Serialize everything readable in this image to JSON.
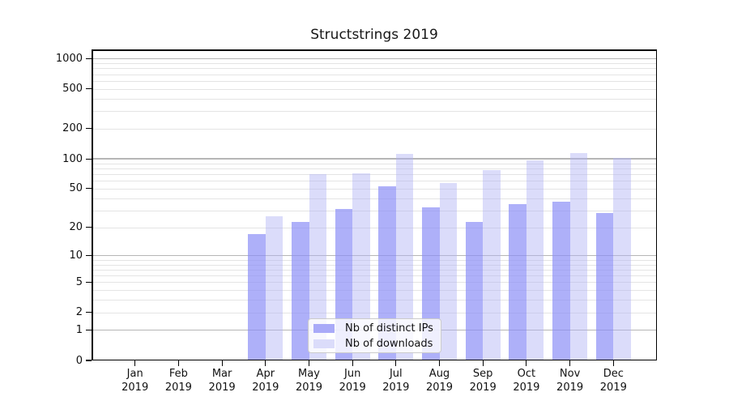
{
  "title": "Structstrings 2019",
  "chart_data": {
    "type": "bar",
    "title": "Structstrings 2019",
    "categories": [
      "Jan",
      "Feb",
      "Mar",
      "Apr",
      "May",
      "Jun",
      "Jul",
      "Aug",
      "Sep",
      "Oct",
      "Nov",
      "Dec"
    ],
    "year_label": "2019",
    "series": [
      {
        "name": "Nb of distinct IPs",
        "values": [
          0,
          0,
          0,
          17,
          23,
          31,
          53,
          32,
          23,
          35,
          37,
          28
        ],
        "fill": "rgba(140,142,247,0.7)",
        "legend_color": "#a9aaf8"
      },
      {
        "name": "Nb of downloads",
        "values": [
          0,
          0,
          0,
          26,
          70,
          72,
          112,
          57,
          77,
          97,
          115,
          102
        ],
        "fill": "rgba(175,177,244,0.45)",
        "legend_color": "#dbdcfa"
      }
    ],
    "yscale": "log1p",
    "yticks": [
      0,
      1,
      2,
      5,
      10,
      20,
      50,
      100,
      200,
      500,
      1000
    ],
    "major_grid_values": [
      1,
      10,
      100,
      1000
    ],
    "ylim": [
      0,
      1240
    ],
    "grid": true,
    "legend_position": "lower-center-inside",
    "colors": {
      "major_gridline": "#b6b6b6",
      "minor_gridline": "#e4e4e4",
      "axis": "#000000",
      "background": "#ffffff"
    }
  }
}
